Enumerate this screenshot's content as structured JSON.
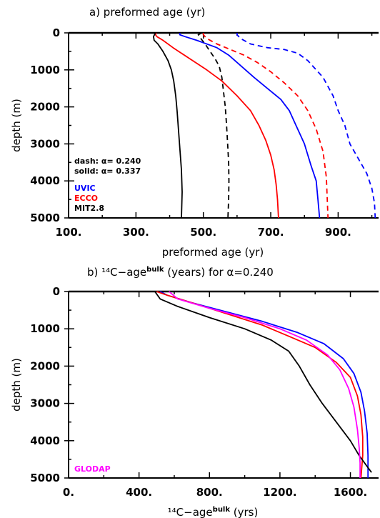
{
  "chart_data": [
    {
      "type": "line",
      "title": "a) preformed age (yr)",
      "xlabel": "preformed age (yr)",
      "ylabel": "depth (m)",
      "xlim": [
        100,
        1020
      ],
      "ylim": [
        5000,
        0
      ],
      "xticks": [
        100,
        300,
        500,
        700,
        900
      ],
      "xtick_labels": [
        "100.",
        "300.",
        "500.",
        "700.",
        "900."
      ],
      "yticks": [
        0,
        1000,
        2000,
        3000,
        4000,
        5000
      ],
      "ytick_labels": [
        "0",
        "1000",
        "2000",
        "3000",
        "4000",
        "5000"
      ],
      "annotations": [
        {
          "text": "dash:  α= 0.240"
        },
        {
          "text": "solid:  α= 0.337"
        }
      ],
      "legend": [
        {
          "name": "UVIC",
          "color": "#0000ff"
        },
        {
          "name": "ECCO",
          "color": "#ff0000"
        },
        {
          "name": "MIT2.8",
          "color": "#000000"
        }
      ],
      "series": [
        {
          "name": "UVIC",
          "style": "solid",
          "color": "#0000ff",
          "x": [
            430,
            430,
            445,
            480,
            540,
            575,
            600,
            625,
            650,
            690,
            730,
            755,
            775,
            790,
            800,
            810,
            820,
            835,
            840,
            845
          ],
          "y": [
            0,
            50,
            100,
            200,
            400,
            600,
            800,
            1000,
            1200,
            1500,
            1800,
            2100,
            2500,
            2800,
            3000,
            3300,
            3600,
            4000,
            4500,
            5000
          ]
        },
        {
          "name": "ECCO",
          "style": "solid",
          "color": "#ff0000",
          "x": [
            360,
            358,
            362,
            380,
            410,
            460,
            510,
            555,
            600,
            640,
            665,
            685,
            700,
            710,
            716,
            720,
            723
          ],
          "y": [
            0,
            50,
            100,
            200,
            400,
            700,
            1000,
            1300,
            1700,
            2100,
            2500,
            2900,
            3300,
            3700,
            4100,
            4500,
            5000
          ]
        },
        {
          "name": "MIT2.8",
          "style": "solid",
          "color": "#000000",
          "x": [
            358,
            352,
            354,
            365,
            380,
            395,
            405,
            412,
            418,
            422,
            426,
            430,
            435,
            437,
            435
          ],
          "y": [
            0,
            100,
            200,
            300,
            500,
            750,
            1000,
            1300,
            1700,
            2100,
            2600,
            3100,
            3700,
            4300,
            5000
          ]
        },
        {
          "name": "UVIC",
          "style": "dash",
          "color": "#0000ff",
          "x": [
            600,
            600,
            610,
            640,
            690,
            740,
            780,
            810,
            835,
            855,
            870,
            885,
            900,
            920,
            935,
            960,
            985,
            1000,
            1008,
            1010
          ],
          "y": [
            0,
            50,
            150,
            300,
            400,
            450,
            550,
            750,
            1000,
            1200,
            1450,
            1700,
            2100,
            2500,
            3000,
            3400,
            3800,
            4200,
            4600,
            5000
          ]
        },
        {
          "name": "ECCO",
          "style": "dash",
          "color": "#ff0000",
          "x": [
            500,
            500,
            510,
            540,
            580,
            620,
            660,
            700,
            740,
            780,
            810,
            835,
            855,
            865,
            870
          ],
          "y": [
            0,
            50,
            150,
            300,
            450,
            600,
            800,
            1050,
            1350,
            1700,
            2100,
            2600,
            3200,
            3900,
            5000
          ]
        },
        {
          "name": "MIT2.8",
          "style": "dash",
          "color": "#000000",
          "x": [
            496,
            485,
            488,
            505,
            520,
            535,
            547,
            555,
            560,
            565,
            569,
            572,
            575,
            576,
            575,
            573
          ],
          "y": [
            0,
            50,
            100,
            300,
            500,
            700,
            900,
            1200,
            1600,
            2000,
            2500,
            3000,
            3500,
            4000,
            4500,
            5000
          ]
        }
      ]
    },
    {
      "type": "line",
      "title": "b) ¹⁴C−age",
      "title_sup": "bulk",
      "title_rest": " (years) for α=0.240",
      "xlabel": "¹⁴C−age",
      "xlabel_sup": "bulk",
      "xlabel_rest": " (yrs)",
      "ylabel": "depth (m)",
      "xlim": [
        0,
        1760
      ],
      "ylim": [
        5000,
        0
      ],
      "xticks": [
        0,
        400,
        800,
        1200,
        1600
      ],
      "xtick_labels": [
        "0.",
        "400.",
        "800.",
        "1200.",
        "1600."
      ],
      "yticks": [
        0,
        1000,
        2000,
        3000,
        4000,
        5000
      ],
      "ytick_labels": [
        "0",
        "1000",
        "2000",
        "3000",
        "4000",
        "5000"
      ],
      "legend": [
        {
          "name": "GLODAP",
          "color": "#ff00ff"
        }
      ],
      "series": [
        {
          "name": "UVIC",
          "color": "#0000ff",
          "x": [
            520,
            560,
            700,
            900,
            1100,
            1300,
            1450,
            1560,
            1620,
            1660,
            1680,
            1695,
            1700,
            1700
          ],
          "y": [
            0,
            100,
            300,
            550,
            800,
            1100,
            1400,
            1800,
            2200,
            2700,
            3200,
            3800,
            4400,
            5000
          ]
        },
        {
          "name": "ECCO",
          "color": "#ff0000",
          "x": [
            500,
            560,
            700,
            900,
            1100,
            1250,
            1400,
            1520,
            1600,
            1640,
            1660,
            1670,
            1670,
            1660
          ],
          "y": [
            0,
            100,
            300,
            600,
            900,
            1200,
            1500,
            1900,
            2300,
            2800,
            3300,
            3900,
            4400,
            5000
          ]
        },
        {
          "name": "MIT2.8",
          "color": "#000000",
          "x": [
            490,
            520,
            620,
            800,
            1000,
            1150,
            1250,
            1310,
            1370,
            1440,
            1520,
            1600,
            1650,
            1720
          ],
          "y": [
            0,
            200,
            400,
            700,
            1000,
            1300,
            1600,
            2000,
            2500,
            3000,
            3500,
            4000,
            4400,
            4850
          ]
        },
        {
          "name": "GLODAP",
          "color": "#ff00ff",
          "x": [
            570,
            620,
            800,
            1000,
            1200,
            1350,
            1470,
            1540,
            1590,
            1620,
            1640,
            1650,
            1655,
            1655
          ],
          "y": [
            0,
            200,
            450,
            700,
            1000,
            1300,
            1700,
            2100,
            2600,
            3100,
            3700,
            4200,
            4600,
            5000
          ]
        }
      ]
    }
  ]
}
